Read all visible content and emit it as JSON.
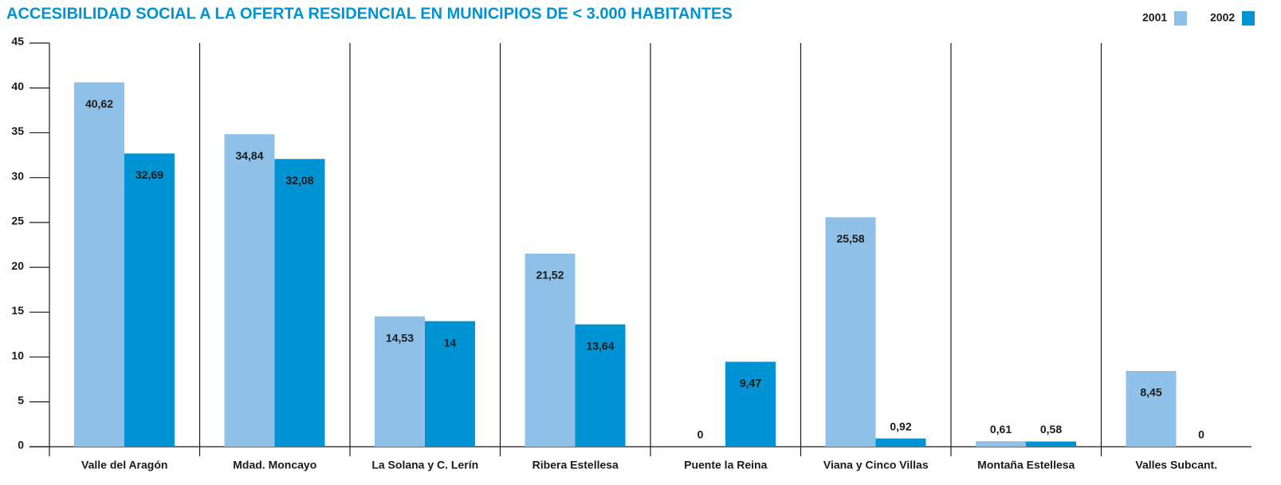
{
  "chart_data": {
    "type": "bar",
    "title": "ACCESIBILIDAD SOCIAL A LA OFERTA RESIDENCIAL EN MUNICIPIOS DE < 3.000 HABITANTES",
    "categories": [
      "Valle del Aragón",
      "Mdad. Moncayo",
      "La Solana y C. Lerín",
      "Ribera Estellesa",
      "Puente la Reina",
      "Viana y Cinco Villas",
      "Montaña Estellesa",
      "Valles Subcant."
    ],
    "series": [
      {
        "name": "2001",
        "color": "#8fc0e8",
        "values": [
          40.62,
          34.84,
          14.53,
          21.52,
          0,
          25.58,
          0.61,
          8.45
        ],
        "value_labels": [
          "40,62",
          "34,84",
          "14,53",
          "21,52",
          "0",
          "25,58",
          "0,61",
          "8,45"
        ]
      },
      {
        "name": "2002",
        "color": "#0093d3",
        "values": [
          32.69,
          32.08,
          14,
          13.64,
          9.47,
          0.92,
          0.58,
          0
        ],
        "value_labels": [
          "32,69",
          "32,08",
          "14",
          "13,64",
          "9,47",
          "0,92",
          "0,58",
          "0"
        ]
      }
    ],
    "ylim": [
      0,
      45
    ],
    "yticks": [
      0,
      5,
      10,
      15,
      20,
      25,
      30,
      35,
      40,
      45
    ],
    "legend": "top-right"
  }
}
